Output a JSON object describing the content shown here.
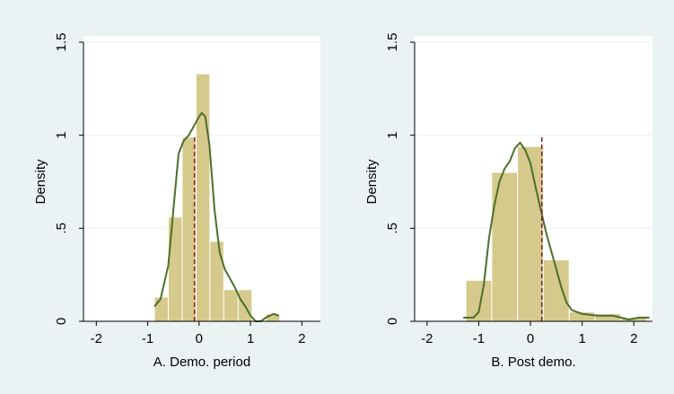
{
  "chart_data": [
    {
      "type": "histogram",
      "x_label": "A. Demo. period",
      "y_label": "Density",
      "bins": [
        -0.87,
        -0.6,
        -0.33,
        -0.06,
        0.21,
        0.48,
        0.76,
        1.03,
        1.3,
        1.57
      ],
      "values": [
        0.13,
        0.56,
        0.99,
        1.33,
        0.43,
        0.17,
        0.17,
        0,
        0.04
      ],
      "color": "#d6c98c",
      "curve": {
        "color": "#4b6f2b",
        "x": [
          -0.87,
          -0.75,
          -0.6,
          -0.5,
          -0.4,
          -0.3,
          -0.2,
          -0.1,
          0,
          0.05,
          0.12,
          0.2,
          0.3,
          0.4,
          0.5,
          0.6,
          0.7,
          0.8,
          0.9,
          1.0,
          1.1,
          1.2,
          1.3,
          1.45,
          1.55
        ],
        "y": [
          0.08,
          0.12,
          0.3,
          0.6,
          0.9,
          0.97,
          1.0,
          1.05,
          1.1,
          1.12,
          1.1,
          0.95,
          0.6,
          0.37,
          0.28,
          0.23,
          0.18,
          0.12,
          0.08,
          0.03,
          0,
          0,
          0.02,
          0.04,
          0.03
        ]
      },
      "mean_line": {
        "value": -0.09,
        "color": "#8b1a2b"
      },
      "xlim": [
        -2.25,
        2.36
      ],
      "ylim": [
        0,
        1.5
      ],
      "xticks": [
        -2,
        -1,
        0,
        1,
        2
      ],
      "yticks": [
        0,
        {
          "value": 0.5,
          "label": ".5"
        },
        1,
        1.5
      ],
      "grid": true
    },
    {
      "type": "histogram",
      "x_label": "B. Post demo.",
      "y_label": "Density",
      "bins": [
        -1.25,
        -0.75,
        -0.25,
        0.25,
        0.75,
        1.25,
        1.75,
        2.25
      ],
      "values": [
        0.22,
        0.8,
        0.94,
        0.33,
        0.05,
        0.04,
        0.02
      ],
      "color": "#d6c98c",
      "curve": {
        "color": "#4b6f2b",
        "x": [
          -1.3,
          -1.1,
          -1.0,
          -0.9,
          -0.8,
          -0.7,
          -0.6,
          -0.5,
          -0.4,
          -0.3,
          -0.2,
          -0.1,
          0,
          0.1,
          0.2,
          0.3,
          0.4,
          0.5,
          0.6,
          0.7,
          0.8,
          1.0,
          1.3,
          1.6,
          1.9,
          2.1,
          2.3
        ],
        "y": [
          0.02,
          0.02,
          0.05,
          0.2,
          0.45,
          0.62,
          0.75,
          0.82,
          0.86,
          0.93,
          0.96,
          0.92,
          0.85,
          0.72,
          0.6,
          0.48,
          0.38,
          0.28,
          0.18,
          0.1,
          0.06,
          0.04,
          0.03,
          0.03,
          0.01,
          0.02,
          0.02
        ]
      },
      "mean_line": {
        "value": 0.22,
        "color": "#8b1a2b"
      },
      "xlim": [
        -2.24,
        2.36
      ],
      "ylim": [
        0,
        1.5
      ],
      "xticks": [
        -2,
        -1,
        0,
        1,
        2
      ],
      "yticks": [
        0,
        {
          "value": 0.5,
          "label": ".5"
        },
        1,
        1.5
      ],
      "grid": true
    }
  ]
}
